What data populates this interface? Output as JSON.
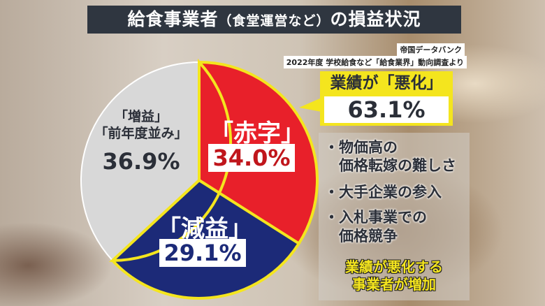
{
  "title": {
    "main1": "給食事業者",
    "paren": "（食堂運営など）",
    "main2": "の損益状況"
  },
  "source": {
    "line1": "帝国データバンク",
    "line2": "2022年度 学校給食など「給食業界」動向調査より"
  },
  "callout": {
    "heading": "業績が「悪化」",
    "value": "63.1%"
  },
  "reasons": [
    "・物価高の",
    "　価格転嫁の難しさ",
    "・大手企業の参入",
    "・入札事業での",
    "　価格競争"
  ],
  "conclusion": [
    "業績が悪化する",
    "事業者が増加"
  ],
  "chart_data": {
    "type": "pie",
    "slices": [
      {
        "name": "「赤字」",
        "value": 34.0,
        "label": "34.0%",
        "color": "#e8202a"
      },
      {
        "name": "「減益」",
        "value": 29.1,
        "label": "29.1%",
        "color": "#1c2a78"
      },
      {
        "name": "「増益」「前年度並み」",
        "value": 36.9,
        "label": "36.9%",
        "color": "#d8d8d8"
      }
    ],
    "gray_label_lines": [
      "「増益」",
      "「前年度並み」"
    ],
    "start": "12 o'clock",
    "direction": "clockwise",
    "border_color": "#f4e51e"
  }
}
